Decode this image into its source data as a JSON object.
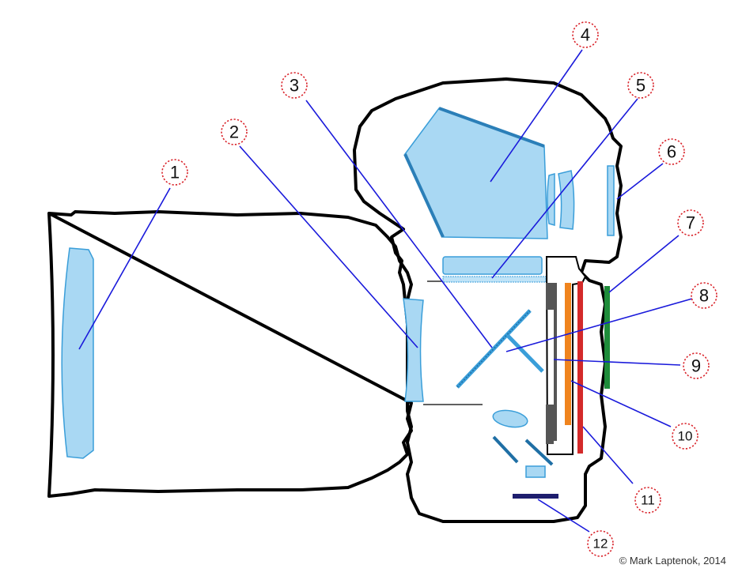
{
  "diagram": {
    "callouts": [
      {
        "label": "1",
        "name": "lens-element"
      },
      {
        "label": "2",
        "name": "rear-lens-element"
      },
      {
        "label": "3",
        "name": "reflex-mirror"
      },
      {
        "label": "4",
        "name": "pentaprism"
      },
      {
        "label": "5",
        "name": "focusing-screen"
      },
      {
        "label": "6",
        "name": "eyepiece"
      },
      {
        "label": "7",
        "name": "lcd-screen"
      },
      {
        "label": "8",
        "name": "secondary-mirror"
      },
      {
        "label": "9",
        "name": "shutter"
      },
      {
        "label": "10",
        "name": "image-sensor"
      },
      {
        "label": "11",
        "name": "circuit-board"
      },
      {
        "label": "12",
        "name": "af-sensor"
      }
    ],
    "copyright": "© Mark Laptenok, 2014"
  },
  "colors": {
    "outline": "#000000",
    "lens_fill": "#a9d8f3",
    "lens_stroke": "#3a9ed9",
    "pointer": "#1a1adb",
    "callout_ring": "#d9232a",
    "lcd": "#1e8c3a",
    "sensor": "#f0841e",
    "circuit_board": "#d42a2a",
    "af_sensor": "#1e1e6e"
  }
}
